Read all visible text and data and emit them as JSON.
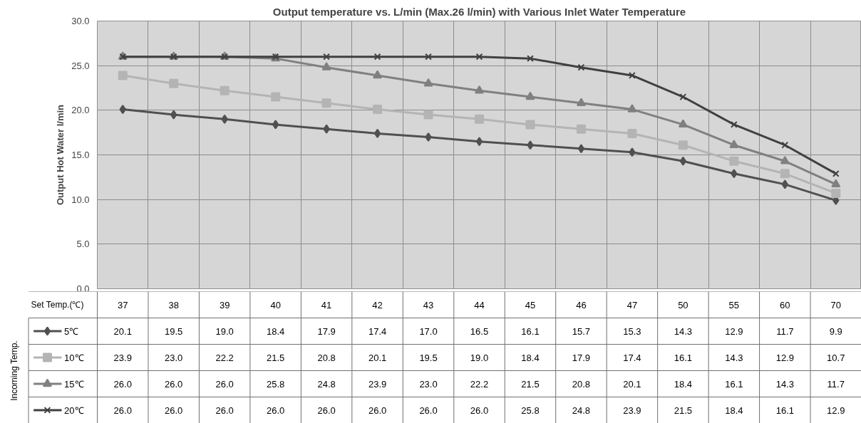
{
  "chart_data": {
    "type": "line",
    "title": "Output temperature vs. L/min (Max.26 l/min) with Various Inlet Water Temperature",
    "ylabel": "Output Hot Water l/min",
    "annotations": [
      "Set Temp.(℃)"
    ],
    "legend_title": "Incoming Temp.",
    "categories": [
      "37",
      "38",
      "39",
      "40",
      "41",
      "42",
      "43",
      "44",
      "45",
      "46",
      "47",
      "50",
      "55",
      "60",
      "70"
    ],
    "ylim": [
      0,
      30
    ],
    "yticks": [
      {
        "value": 0,
        "label": "0.0"
      },
      {
        "value": 5,
        "label": "5.0"
      },
      {
        "value": 10,
        "label": "10.0"
      },
      {
        "value": 15,
        "label": "15.0"
      },
      {
        "value": 20,
        "label": "20.0"
      },
      {
        "value": 25,
        "label": "25.0"
      },
      {
        "value": 30,
        "label": "30.0"
      }
    ],
    "grid": true,
    "legend": "left",
    "data_labels": true,
    "line_style": "solid",
    "series": [
      {
        "name": "5℃",
        "color": "#505050",
        "marker": "diamond",
        "values": [
          20.1,
          19.5,
          19.0,
          18.4,
          17.9,
          17.4,
          17.0,
          16.5,
          16.1,
          15.7,
          15.3,
          14.3,
          12.9,
          11.7,
          9.9
        ],
        "value_labels": [
          "20.1",
          "19.5",
          "19.0",
          "18.4",
          "17.9",
          "17.4",
          "17.0",
          "16.5",
          "16.1",
          "15.7",
          "15.3",
          "14.3",
          "12.9",
          "11.7",
          "9.9"
        ]
      },
      {
        "name": "10℃",
        "color": "#b4b4b4",
        "marker": "square",
        "values": [
          23.9,
          23.0,
          22.2,
          21.5,
          20.8,
          20.1,
          19.5,
          19.0,
          18.4,
          17.9,
          17.4,
          16.1,
          14.3,
          12.9,
          10.7
        ],
        "value_labels": [
          "23.9",
          "23.0",
          "22.2",
          "21.5",
          "20.8",
          "20.1",
          "19.5",
          "19.0",
          "18.4",
          "17.9",
          "17.4",
          "16.1",
          "14.3",
          "12.9",
          "10.7"
        ]
      },
      {
        "name": "15℃",
        "color": "#808080",
        "marker": "triangle",
        "values": [
          26.0,
          26.0,
          26.0,
          25.8,
          24.8,
          23.9,
          23.0,
          22.2,
          21.5,
          20.8,
          20.1,
          18.4,
          16.1,
          14.3,
          11.7
        ],
        "value_labels": [
          "26.0",
          "26.0",
          "26.0",
          "25.8",
          "24.8",
          "23.9",
          "23.0",
          "22.2",
          "21.5",
          "20.8",
          "20.1",
          "18.4",
          "16.1",
          "14.3",
          "11.7"
        ]
      },
      {
        "name": "20℃",
        "color": "#404040",
        "marker": "cross",
        "values": [
          26.0,
          26.0,
          26.0,
          26.0,
          26.0,
          26.0,
          26.0,
          26.0,
          25.8,
          24.8,
          23.9,
          21.5,
          18.4,
          16.1,
          12.9
        ],
        "value_labels": [
          "26.0",
          "26.0",
          "26.0",
          "26.0",
          "26.0",
          "26.0",
          "26.0",
          "26.0",
          "25.8",
          "24.8",
          "23.9",
          "21.5",
          "18.4",
          "16.1",
          "12.9"
        ]
      }
    ]
  }
}
